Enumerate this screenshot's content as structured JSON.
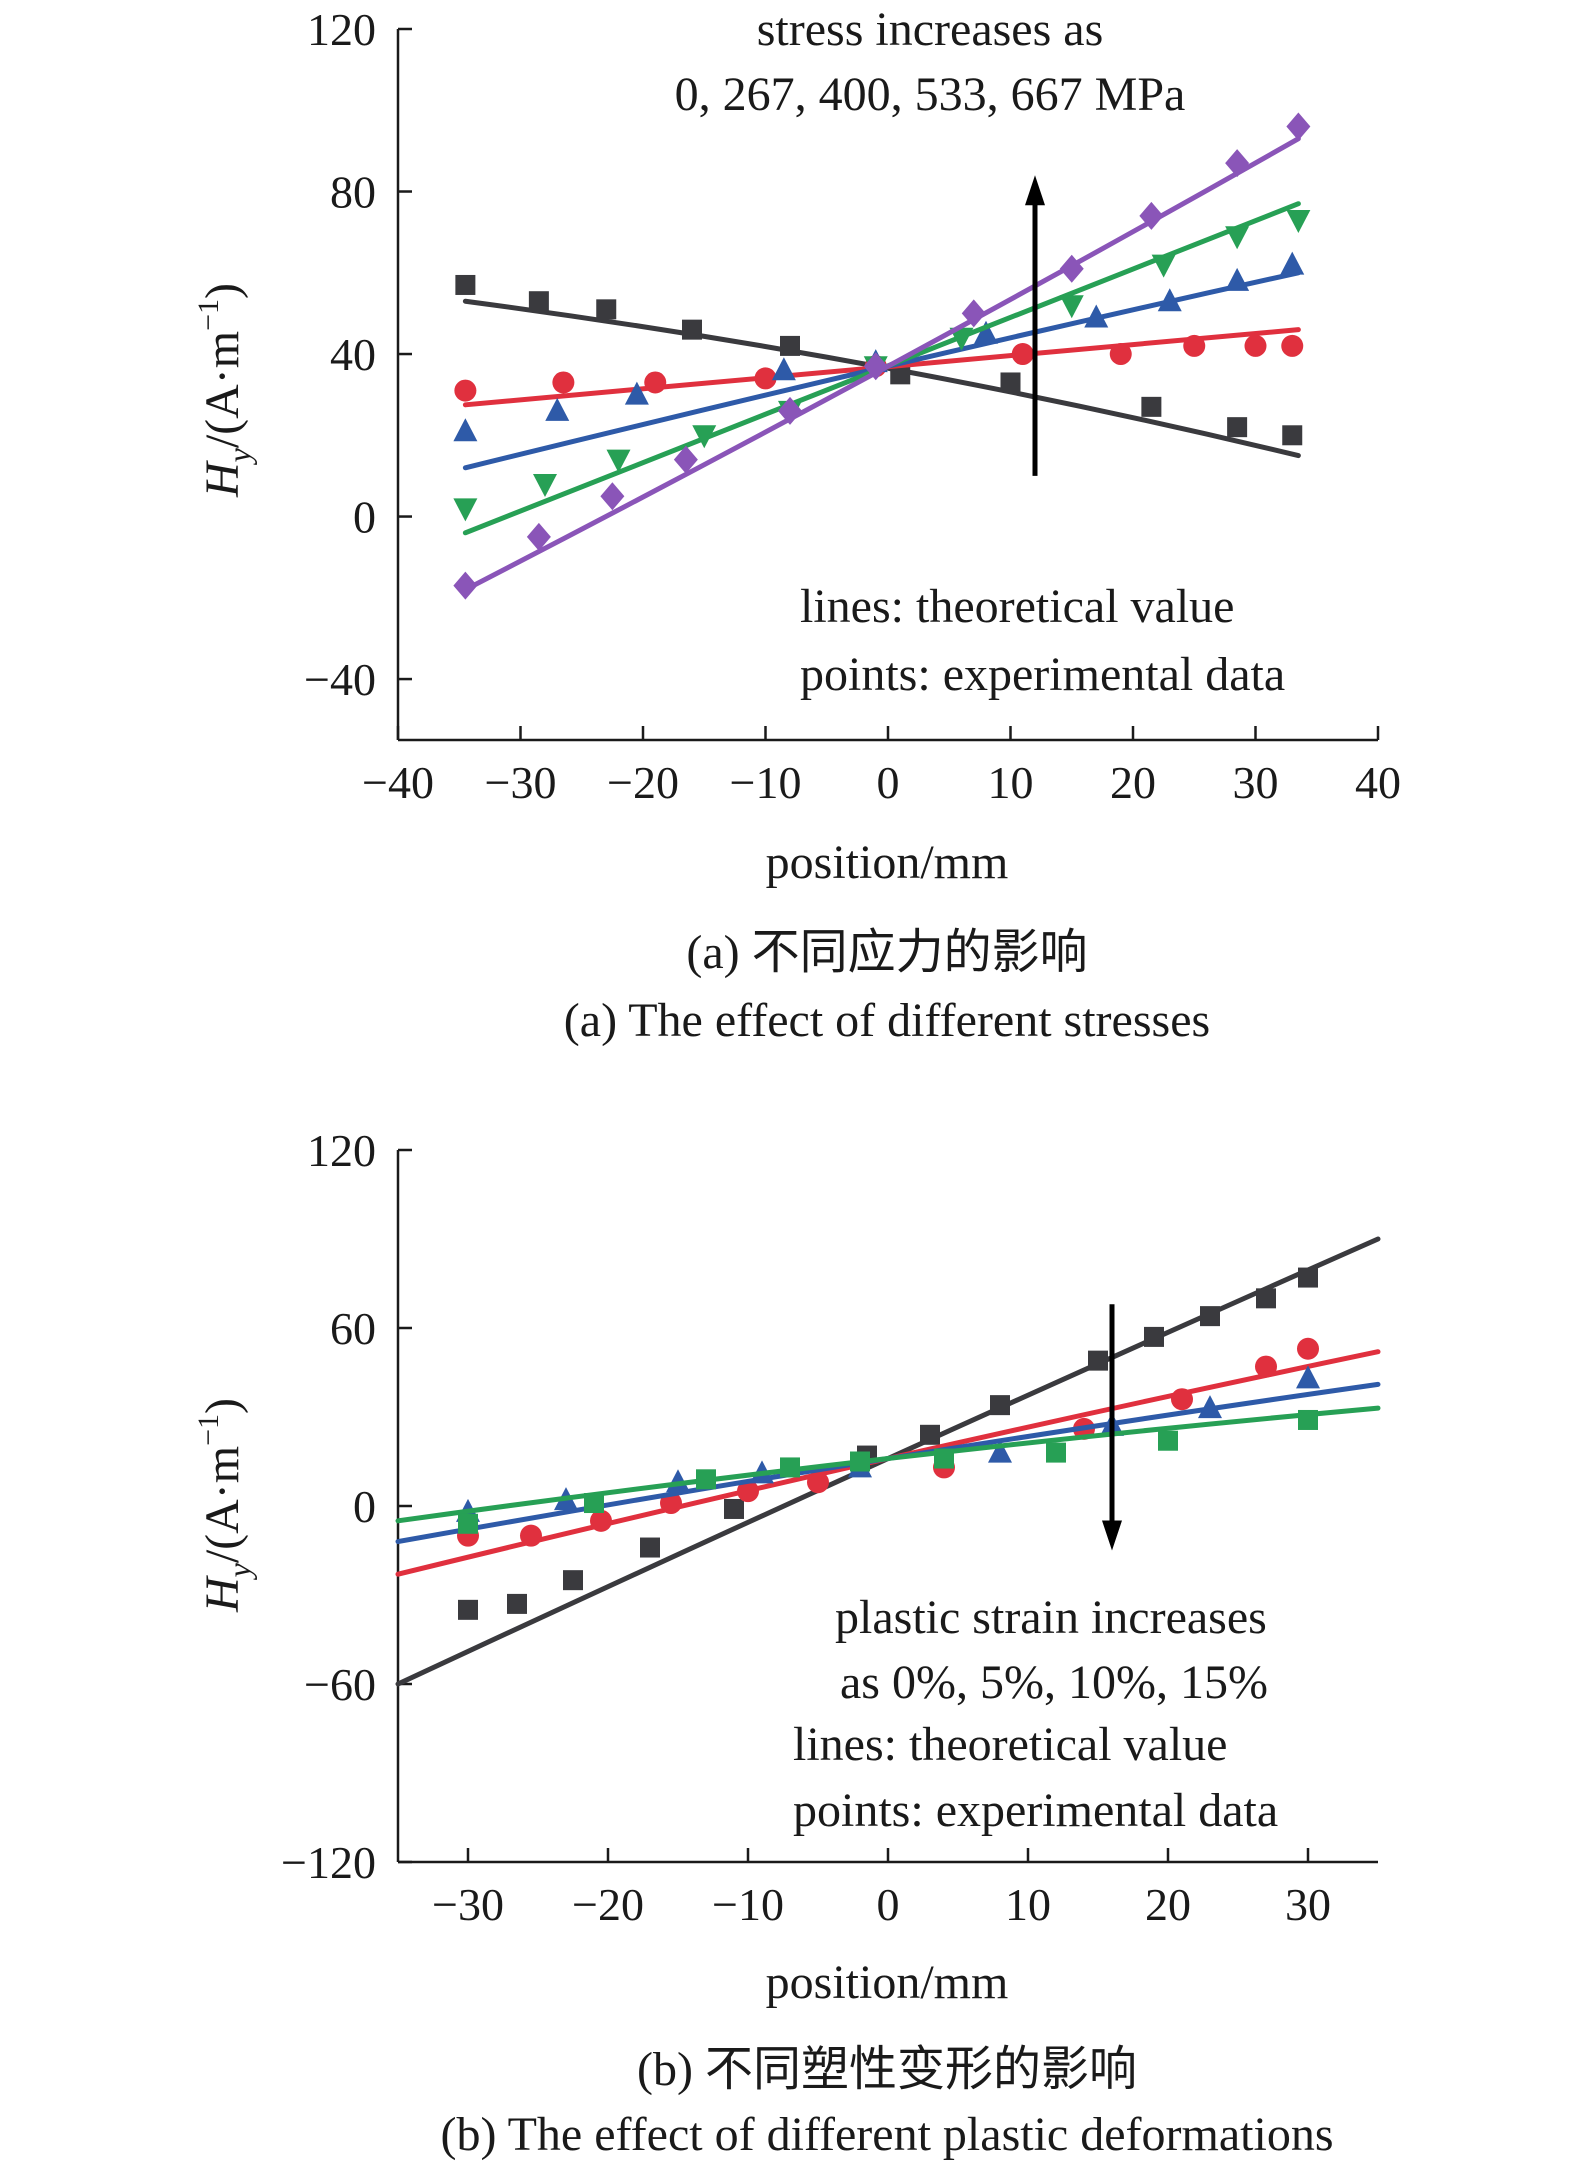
{
  "chart_data": [
    {
      "id": "a",
      "type": "scatter",
      "xlabel": "position/mm",
      "ylabel_main": "H",
      "ylabel_sub": "y",
      "ylabel_unit_pre": "/(A·m",
      "ylabel_unit_sup": "−1",
      "ylabel_unit_post": ")",
      "xlim": [
        -40,
        40
      ],
      "ylim": [
        -55,
        120
      ],
      "xticks": [
        -40,
        -30,
        -20,
        -10,
        0,
        10,
        20,
        30,
        40
      ],
      "xtick_labels": [
        "−40",
        "−30",
        "−20",
        "−10",
        "0",
        "10",
        "20",
        "30",
        "40"
      ],
      "yticks": [
        -40,
        0,
        40,
        80,
        120
      ],
      "ytick_labels": [
        "−40",
        "0",
        "40",
        "80",
        "120"
      ],
      "grid": false,
      "annotations": {
        "top": [
          "stress increases as",
          "0, 267, 400, 533, 667 MPa"
        ],
        "legend_note": [
          "lines: theoretical value",
          "points: experimental data"
        ]
      },
      "arrow": {
        "x": 12,
        "y_from": 10,
        "y_to": 84
      },
      "caption_cn": "(a) 不同应力的影响",
      "caption_en": "(a) The effect of different stresses",
      "series": [
        {
          "color": "#3a3a3e",
          "marker": "square",
          "line": [
            [
              -34.5,
              53.0
            ],
            [
              0,
              36.5
            ],
            [
              33.5,
              15.0
            ]
          ],
          "points": [
            [
              -34.5,
              57
            ],
            [
              -28.5,
              53
            ],
            [
              -23,
              51
            ],
            [
              -16,
              46
            ],
            [
              -8,
              42
            ],
            [
              1,
              35
            ],
            [
              10,
              33
            ],
            [
              21.5,
              27
            ],
            [
              28.5,
              22
            ],
            [
              33,
              20
            ]
          ]
        },
        {
          "color": "#e0303e",
          "marker": "circle",
          "line": [
            [
              -34.5,
              27.5
            ],
            [
              0,
              37.0
            ],
            [
              33.5,
              46.0
            ]
          ],
          "points": [
            [
              -34.5,
              31
            ],
            [
              -26.5,
              33
            ],
            [
              -19,
              33
            ],
            [
              -10,
              34
            ],
            [
              -1,
              37
            ],
            [
              11,
              40
            ],
            [
              19,
              40
            ],
            [
              25,
              42
            ],
            [
              30,
              42
            ],
            [
              33,
              42
            ]
          ]
        },
        {
          "color": "#2e5aa8",
          "marker": "triangle-up",
          "line": [
            [
              -34.5,
              12.0
            ],
            [
              0,
              37.0
            ],
            [
              33.5,
              60.0
            ]
          ],
          "points": [
            [
              -34.5,
              21
            ],
            [
              -27,
              26
            ],
            [
              -20.5,
              30
            ],
            [
              -8.5,
              36
            ],
            [
              -1,
              38
            ],
            [
              8,
              45
            ],
            [
              17,
              49
            ],
            [
              23,
              53
            ],
            [
              28.5,
              58
            ],
            [
              33,
              62
            ]
          ]
        },
        {
          "color": "#27a055",
          "marker": "triangle-down",
          "line": [
            [
              -34.5,
              -4.0
            ],
            [
              0,
              37.0
            ],
            [
              33.5,
              77.0
            ]
          ],
          "points": [
            [
              -34.5,
              2
            ],
            [
              -28,
              8
            ],
            [
              -22,
              14
            ],
            [
              -15,
              20
            ],
            [
              -8,
              26
            ],
            [
              -1,
              37
            ],
            [
              6,
              44
            ],
            [
              15,
              52
            ],
            [
              22.5,
              62
            ],
            [
              28.5,
              69
            ],
            [
              33.5,
              73
            ]
          ]
        },
        {
          "color": "#8a55b8",
          "marker": "diamond",
          "line": [
            [
              -34.5,
              -18.0
            ],
            [
              0,
              37.0
            ],
            [
              33.5,
              93.0
            ]
          ],
          "points": [
            [
              -34.5,
              -17
            ],
            [
              -28.5,
              -5
            ],
            [
              -22.5,
              5
            ],
            [
              -16.5,
              14
            ],
            [
              -8,
              26
            ],
            [
              -1,
              37
            ],
            [
              7,
              50
            ],
            [
              15,
              61
            ],
            [
              21.5,
              74
            ],
            [
              28.5,
              87
            ],
            [
              33.5,
              96
            ]
          ]
        }
      ]
    },
    {
      "id": "b",
      "type": "scatter",
      "xlabel": "position/mm",
      "ylabel_main": "H",
      "ylabel_sub": "y",
      "ylabel_unit_pre": "/(A·m",
      "ylabel_unit_sup": "−1",
      "ylabel_unit_post": ")",
      "xlim": [
        -35,
        35
      ],
      "ylim": [
        -120,
        120
      ],
      "xticks": [
        -30,
        -20,
        -10,
        0,
        10,
        20,
        30
      ],
      "xtick_labels": [
        "−30",
        "−20",
        "−10",
        "0",
        "10",
        "20",
        "30"
      ],
      "yticks": [
        -120,
        -60,
        0,
        60,
        120
      ],
      "ytick_labels": [
        "−120",
        "−60",
        "0",
        "60",
        "120"
      ],
      "grid": false,
      "annotations": {
        "top": [
          "plastic strain increases",
          "as 0%, 5%, 10%, 15%"
        ],
        "legend_note": [
          "lines: theoretical value",
          "points: experimental data"
        ]
      },
      "arrow": {
        "x": 16,
        "y_from": 68,
        "y_to": -15
      },
      "caption_cn": "(b) 不同塑性变形的影响",
      "caption_en": "(b) The effect of different plastic deformations",
      "series": [
        {
          "color": "#3a3a3e",
          "marker": "square",
          "line": [
            [
              -35,
              -60.0
            ],
            [
              0,
              16.0
            ],
            [
              35,
              90.0
            ]
          ],
          "points": [
            [
              -30,
              -35
            ],
            [
              -26.5,
              -33
            ],
            [
              -22.5,
              -25
            ],
            [
              -17,
              -14
            ],
            [
              -11,
              -1
            ],
            [
              -1.5,
              17
            ],
            [
              3,
              24
            ],
            [
              8,
              34
            ],
            [
              15,
              49
            ],
            [
              19,
              57
            ],
            [
              23,
              64
            ],
            [
              27,
              70
            ],
            [
              30,
              77
            ]
          ]
        },
        {
          "color": "#e0303e",
          "marker": "circle",
          "line": [
            [
              -35,
              -23.0
            ],
            [
              0,
              16.0
            ],
            [
              35,
              52.0
            ]
          ],
          "points": [
            [
              -30,
              -10
            ],
            [
              -25.5,
              -10
            ],
            [
              -20.5,
              -5
            ],
            [
              -15.5,
              1
            ],
            [
              -10,
              5
            ],
            [
              -5,
              8
            ],
            [
              4,
              13
            ],
            [
              14,
              26
            ],
            [
              21,
              36
            ],
            [
              27,
              47
            ],
            [
              30,
              53
            ]
          ]
        },
        {
          "color": "#2e5aa8",
          "marker": "triangle-up",
          "line": [
            [
              -35,
              -12.0
            ],
            [
              0,
              16.0
            ],
            [
              35,
              41.0
            ]
          ],
          "points": [
            [
              -30,
              -2
            ],
            [
              -23,
              2
            ],
            [
              -15,
              8
            ],
            [
              -9,
              11
            ],
            [
              -2,
              13
            ],
            [
              8,
              18
            ],
            [
              16,
              27
            ],
            [
              23,
              33
            ],
            [
              30,
              43
            ]
          ]
        },
        {
          "color": "#27a055",
          "marker": "square",
          "line": [
            [
              -35,
              -5.0
            ],
            [
              0,
              16.0
            ],
            [
              35,
              33.0
            ]
          ],
          "points": [
            [
              -30,
              -6
            ],
            [
              -21,
              1
            ],
            [
              -13,
              9
            ],
            [
              -7,
              13
            ],
            [
              -2,
              15
            ],
            [
              4,
              16
            ],
            [
              12,
              18
            ],
            [
              20,
              22
            ],
            [
              30,
              29
            ]
          ]
        }
      ]
    }
  ]
}
